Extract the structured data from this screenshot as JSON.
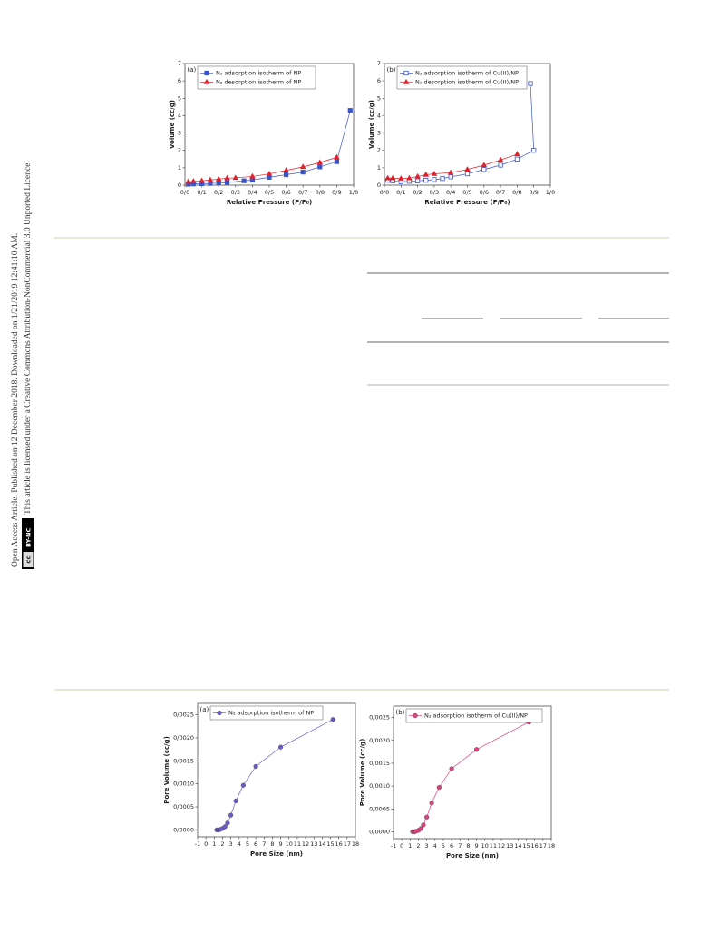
{
  "sidebar": {
    "line1": "Open Access Article. Published on 12 December 2018. Downloaded on 1/21/2019 12:41:10 AM.",
    "line2": "This article is licensed under a Creative Commons Attribution-NonCommercial 3.0 Unported Licence.",
    "badge_logo": "cc",
    "badge_text": "BY-NC"
  },
  "chart_data": [
    {
      "type": "line",
      "panel": "(a)",
      "x_label": "Relative Pressure (P/P₀)",
      "y_label": "Volume (cc/g)",
      "xlim": [
        0,
        1
      ],
      "ylim": [
        0,
        7
      ],
      "xticks": [
        {
          "value": 0,
          "label": "0/0"
        },
        {
          "value": 0.1,
          "label": "0/1"
        },
        {
          "value": 0.2,
          "label": "0/2"
        },
        {
          "value": 0.3,
          "label": "0/3"
        },
        {
          "value": 0.4,
          "label": "0/4"
        },
        {
          "value": 0.5,
          "label": "0/5"
        },
        {
          "value": 0.6,
          "label": "0/6"
        },
        {
          "value": 0.7,
          "label": "0/7"
        },
        {
          "value": 0.8,
          "label": "0/8"
        },
        {
          "value": 0.9,
          "label": "0/9"
        },
        {
          "value": 1,
          "label": "1/0"
        }
      ],
      "yticks": [
        0,
        1,
        2,
        3,
        4,
        5,
        6,
        7
      ],
      "series": [
        {
          "name": "N₂ adsorption isotherm of NP",
          "color": "#3b55c9",
          "marker": "square",
          "filled": true,
          "x": [
            0.02,
            0.05,
            0.1,
            0.15,
            0.2,
            0.25,
            0.35,
            0.4,
            0.5,
            0.6,
            0.7,
            0.8,
            0.9,
            0.98
          ],
          "values": [
            0.05,
            0.07,
            0.08,
            0.1,
            0.12,
            0.15,
            0.25,
            0.3,
            0.45,
            0.6,
            0.75,
            1.05,
            1.35,
            4.3
          ]
        },
        {
          "name": "N₂ desorption isotherm of NP",
          "color": "#e0202a",
          "marker": "triangle",
          "filled": true,
          "x": [
            0.02,
            0.05,
            0.1,
            0.15,
            0.2,
            0.25,
            0.3,
            0.4,
            0.5,
            0.6,
            0.7,
            0.8,
            0.9
          ],
          "values": [
            0.2,
            0.22,
            0.25,
            0.3,
            0.35,
            0.4,
            0.42,
            0.5,
            0.65,
            0.85,
            1.05,
            1.3,
            1.6
          ]
        }
      ]
    },
    {
      "type": "line",
      "panel": "(b)",
      "x_label": "Relative Pressure (P/P₀)",
      "y_label": "Volume (cc/g)",
      "xlim": [
        0,
        1
      ],
      "ylim": [
        0,
        7
      ],
      "xticks": [
        {
          "value": 0,
          "label": "0/0"
        },
        {
          "value": 0.1,
          "label": "0/1"
        },
        {
          "value": 0.2,
          "label": "0/2"
        },
        {
          "value": 0.3,
          "label": "0/3"
        },
        {
          "value": 0.4,
          "label": "0/4"
        },
        {
          "value": 0.5,
          "label": "0/5"
        },
        {
          "value": 0.6,
          "label": "0/6"
        },
        {
          "value": 0.7,
          "label": "0/7"
        },
        {
          "value": 0.8,
          "label": "0/8"
        },
        {
          "value": 0.9,
          "label": "0/9"
        },
        {
          "value": 1,
          "label": "1/0"
        }
      ],
      "yticks": [
        0,
        1,
        2,
        3,
        4,
        5,
        6,
        7
      ],
      "series": [
        {
          "name": "N₂ adsorption isotherm of Cu(II)/NP",
          "color": "#3b55c9",
          "marker": "square",
          "filled": false,
          "x": [
            0.02,
            0.05,
            0.1,
            0.15,
            0.2,
            0.25,
            0.3,
            0.35,
            0.4,
            0.5,
            0.6,
            0.7,
            0.8,
            0.9,
            0.88
          ],
          "values": [
            0.28,
            0.25,
            0.2,
            0.22,
            0.25,
            0.28,
            0.32,
            0.38,
            0.48,
            0.65,
            0.9,
            1.15,
            1.5,
            2.0,
            5.85
          ]
        },
        {
          "name": "N₂ desorption isotherm of Cu(II)/NP",
          "color": "#e0202a",
          "marker": "triangle",
          "filled": true,
          "x": [
            0.02,
            0.05,
            0.1,
            0.15,
            0.2,
            0.25,
            0.3,
            0.4,
            0.5,
            0.6,
            0.7,
            0.8
          ],
          "values": [
            0.4,
            0.4,
            0.38,
            0.4,
            0.5,
            0.6,
            0.65,
            0.72,
            0.9,
            1.15,
            1.45,
            1.78
          ]
        }
      ]
    },
    {
      "type": "line",
      "panel": "(a)",
      "x_label": "Pore Size (nm)",
      "y_label": "Pore Volume (cc/g)",
      "xlim": [
        -1,
        18
      ],
      "ylim": [
        -0.00015,
        0.00275
      ],
      "xticks": [
        -1,
        0,
        1,
        2,
        3,
        4,
        5,
        6,
        7,
        8,
        9,
        10,
        11,
        12,
        13,
        14,
        15,
        16,
        17,
        18
      ],
      "yticks": [
        {
          "value": 0,
          "label": "0/0000"
        },
        {
          "value": 0.0005,
          "label": "0/0005"
        },
        {
          "value": 0.001,
          "label": "0/0010"
        },
        {
          "value": 0.0015,
          "label": "0/0015"
        },
        {
          "value": 0.002,
          "label": "0/0020"
        },
        {
          "value": 0.0025,
          "label": "0/0025"
        }
      ],
      "series": [
        {
          "name": "N₂ adsorption isotherm of NP",
          "color": "#6a5acd",
          "marker": "circle",
          "filled": true,
          "x": [
            1.3,
            1.5,
            1.7,
            2,
            2.3,
            2.6,
            3,
            3.6,
            4.5,
            6,
            9,
            15.3
          ],
          "values": [
            0,
            0,
            1e-05,
            3e-05,
            7e-05,
            0.00015,
            0.00032,
            0.00063,
            0.00097,
            0.00138,
            0.0018,
            0.0024
          ]
        }
      ]
    },
    {
      "type": "line",
      "panel": "(b)",
      "x_label": "Pore Size (nm)",
      "y_label": "Pore Volume (cc/g)",
      "xlim": [
        -1,
        18
      ],
      "ylim": [
        -0.00015,
        0.00275
      ],
      "xticks": [
        -1,
        0,
        1,
        2,
        3,
        4,
        5,
        6,
        7,
        8,
        9,
        10,
        11,
        12,
        13,
        14,
        15,
        16,
        17,
        18
      ],
      "yticks": [
        {
          "value": 0,
          "label": "0/0000"
        },
        {
          "value": 0.0005,
          "label": "0/0005"
        },
        {
          "value": 0.001,
          "label": "0/0010"
        },
        {
          "value": 0.0015,
          "label": "0/0015"
        },
        {
          "value": 0.002,
          "label": "0/0020"
        },
        {
          "value": 0.0025,
          "label": "0/0025"
        }
      ],
      "series": [
        {
          "name": "N₂ adsorption isotherm of Cu(II)/NP",
          "color": "#e0407f",
          "marker": "circle",
          "filled": true,
          "x": [
            1.3,
            1.5,
            1.7,
            2,
            2.3,
            2.6,
            3,
            3.6,
            4.5,
            6,
            9,
            15.3
          ],
          "values": [
            0,
            0,
            1e-05,
            3e-05,
            7e-05,
            0.00015,
            0.00032,
            0.00063,
            0.00097,
            0.00138,
            0.0018,
            0.0024
          ]
        }
      ]
    }
  ]
}
